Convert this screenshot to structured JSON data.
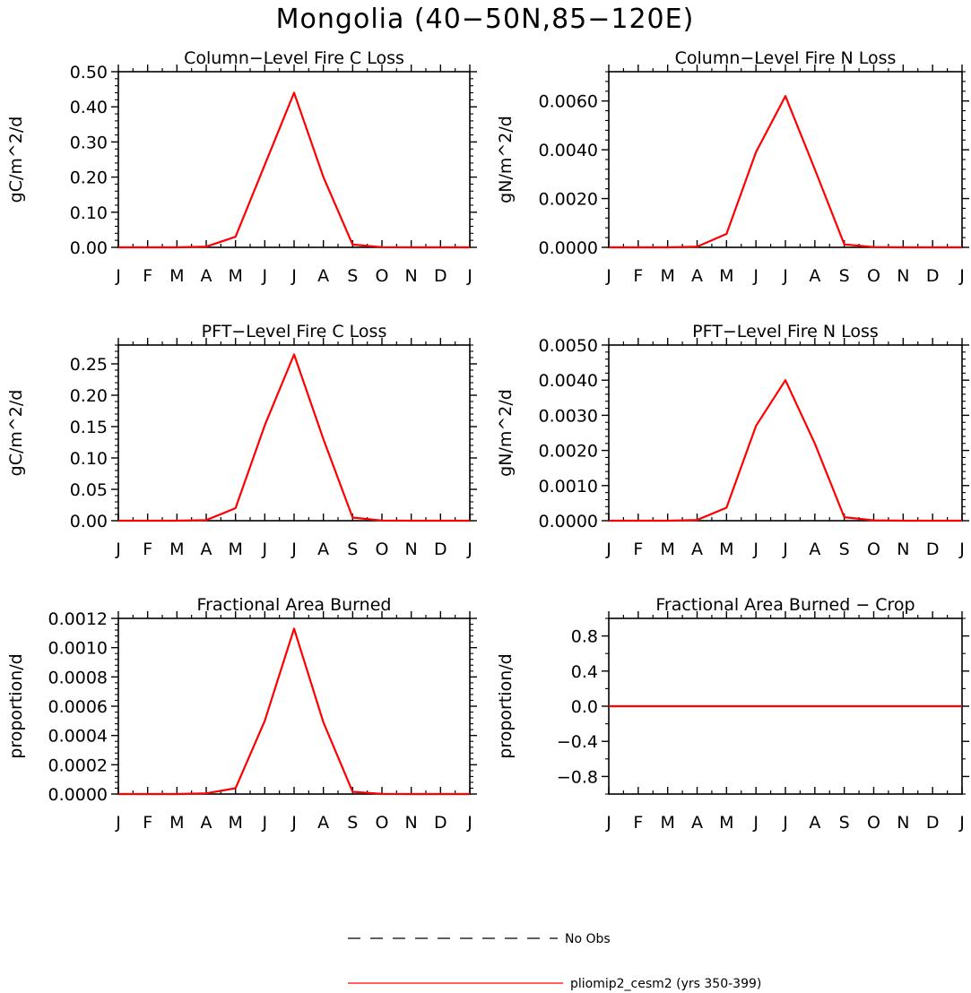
{
  "figure": {
    "title": "Mongolia (40−50N,85−120E)",
    "colors": {
      "model": "#ff0000",
      "obs": "#000000",
      "axis": "#000000"
    }
  },
  "legend": [
    {
      "label": "No Obs",
      "style": "dashed",
      "color": "#000000"
    },
    {
      "label": "pliomip2_cesm2 (yrs 350-399)",
      "style": "solid",
      "color": "#ff0000"
    }
  ],
  "chart_data": [
    {
      "type": "line",
      "title": "Column−Level Fire C Loss",
      "ylabel": "gC/m^2/d",
      "categories": [
        "J",
        "F",
        "M",
        "A",
        "M",
        "J",
        "J",
        "A",
        "S",
        "O",
        "N",
        "D",
        "J"
      ],
      "ylim": [
        0,
        0.5
      ],
      "yticks": [
        0,
        0.1,
        0.2,
        0.3,
        0.4,
        0.5
      ],
      "ytick_labels": [
        "0.00",
        "0.10",
        "0.20",
        "0.30",
        "0.40",
        "0.50"
      ],
      "series": [
        {
          "name": "pliomip2_cesm2 (yrs 350-399)",
          "values": [
            0,
            0,
            0,
            0.002,
            0.03,
            0.235,
            0.44,
            0.2,
            0.008,
            0.0005,
            0,
            0,
            0
          ]
        }
      ]
    },
    {
      "type": "line",
      "title": "Column−Level Fire N Loss",
      "ylabel": "gN/m^2/d",
      "categories": [
        "J",
        "F",
        "M",
        "A",
        "M",
        "J",
        "J",
        "A",
        "S",
        "O",
        "N",
        "D",
        "J"
      ],
      "ylim": [
        0,
        0.0072
      ],
      "yticks": [
        0,
        0.002,
        0.004,
        0.006
      ],
      "ytick_labels": [
        "0.0000",
        "0.0020",
        "0.0040",
        "0.0060"
      ],
      "series": [
        {
          "name": "pliomip2_cesm2 (yrs 350-399)",
          "values": [
            0,
            0,
            0,
            3e-05,
            0.00055,
            0.0039,
            0.0062,
            0.0032,
            0.00012,
            1e-05,
            0,
            0,
            0
          ]
        }
      ]
    },
    {
      "type": "line",
      "title": "PFT−Level Fire C Loss",
      "ylabel": "gC/m^2/d",
      "categories": [
        "J",
        "F",
        "M",
        "A",
        "M",
        "J",
        "J",
        "A",
        "S",
        "O",
        "N",
        "D",
        "J"
      ],
      "ylim": [
        0,
        0.28
      ],
      "yticks": [
        0,
        0.05,
        0.1,
        0.15,
        0.2,
        0.25
      ],
      "ytick_labels": [
        "0.00",
        "0.05",
        "0.10",
        "0.15",
        "0.20",
        "0.25"
      ],
      "series": [
        {
          "name": "pliomip2_cesm2 (yrs 350-399)",
          "values": [
            0,
            0,
            0,
            0.001,
            0.02,
            0.152,
            0.265,
            0.13,
            0.005,
            0.0003,
            0,
            0,
            0
          ]
        }
      ]
    },
    {
      "type": "line",
      "title": "PFT−Level Fire N Loss",
      "ylabel": "gN/m^2/d",
      "categories": [
        "J",
        "F",
        "M",
        "A",
        "M",
        "J",
        "J",
        "A",
        "S",
        "O",
        "N",
        "D",
        "J"
      ],
      "ylim": [
        0,
        0.005
      ],
      "yticks": [
        0,
        0.001,
        0.002,
        0.003,
        0.004,
        0.005
      ],
      "ytick_labels": [
        "0.0000",
        "0.0010",
        "0.0020",
        "0.0030",
        "0.0040",
        "0.0050"
      ],
      "series": [
        {
          "name": "pliomip2_cesm2 (yrs 350-399)",
          "values": [
            0,
            0,
            0,
            2e-05,
            0.00037,
            0.0027,
            0.004,
            0.0022,
            0.0001,
            1e-05,
            0,
            0,
            0
          ]
        }
      ]
    },
    {
      "type": "line",
      "title": "Fractional Area Burned",
      "ylabel": "proportion/d",
      "categories": [
        "J",
        "F",
        "M",
        "A",
        "M",
        "J",
        "J",
        "A",
        "S",
        "O",
        "N",
        "D",
        "J"
      ],
      "ylim": [
        0,
        0.0012
      ],
      "yticks": [
        0,
        0.0002,
        0.0004,
        0.0006,
        0.0008,
        0.001,
        0.0012
      ],
      "ytick_labels": [
        "0.0000",
        "0.0002",
        "0.0004",
        "0.0006",
        "0.0008",
        "0.0010",
        "0.0012"
      ],
      "series": [
        {
          "name": "pliomip2_cesm2 (yrs 350-399)",
          "values": [
            0,
            0,
            0,
            5e-06,
            4e-05,
            0.0005,
            0.00113,
            0.00049,
            1.5e-05,
            1e-06,
            0,
            0,
            0
          ]
        }
      ]
    },
    {
      "type": "line",
      "title": "Fractional Area Burned − Crop",
      "ylabel": "proportion/d",
      "categories": [
        "J",
        "F",
        "M",
        "A",
        "M",
        "J",
        "J",
        "A",
        "S",
        "O",
        "N",
        "D",
        "J"
      ],
      "ylim": [
        -1,
        1
      ],
      "yticks": [
        -0.8,
        -0.4,
        0,
        0.4,
        0.8
      ],
      "ytick_labels": [
        "−0.8",
        "−0.4",
        "0.0",
        "0.4",
        "0.8"
      ],
      "series": [
        {
          "name": "pliomip2_cesm2 (yrs 350-399)",
          "values": [
            0,
            0,
            0,
            0,
            0,
            0,
            0,
            0,
            0,
            0,
            0,
            0,
            0
          ]
        }
      ]
    }
  ]
}
